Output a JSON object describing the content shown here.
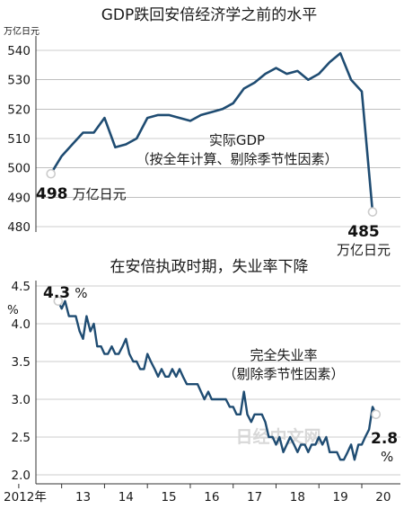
{
  "chart_data": [
    {
      "type": "line",
      "title": "GDP跌回安倍经济学之前的水平",
      "ylabel": "万亿日元",
      "ylim": [
        480,
        540
      ],
      "yticks": [
        480,
        490,
        500,
        510,
        520,
        530,
        540
      ],
      "series_label": "实际GDP",
      "series_note": "（按全年计算、剔除季节性因素）",
      "annotations": {
        "start_value": "498",
        "start_unit": "万亿日元",
        "end_value": "485",
        "end_unit": "万亿日元"
      },
      "colors": {
        "line": "#1f4c72",
        "marker": "#cccccc"
      },
      "x": [
        2012.75,
        2013.0,
        2013.25,
        2013.5,
        2013.75,
        2014.0,
        2014.25,
        2014.5,
        2014.75,
        2015.0,
        2015.25,
        2015.5,
        2015.75,
        2016.0,
        2016.25,
        2016.5,
        2016.75,
        2017.0,
        2017.25,
        2017.5,
        2017.75,
        2018.0,
        2018.25,
        2018.5,
        2018.75,
        2019.0,
        2019.25,
        2019.5,
        2019.75,
        2020.0,
        2020.25
      ],
      "values": [
        498,
        504,
        508,
        512,
        512,
        517,
        507,
        508,
        510,
        517,
        518,
        518,
        517,
        516,
        518,
        519,
        520,
        522,
        527,
        529,
        532,
        534,
        532,
        533,
        530,
        532,
        536,
        539,
        530,
        526,
        485
      ]
    },
    {
      "type": "line",
      "title": "在安倍执政时期，失业率下降",
      "ylabel": "%",
      "ylim": [
        2.0,
        4.5
      ],
      "yticks": [
        2.0,
        2.5,
        3.0,
        3.5,
        4.0,
        4.5
      ],
      "xticks": [
        "2012年",
        "13",
        "14",
        "15",
        "16",
        "17",
        "18",
        "19",
        "20"
      ],
      "xtick_years": [
        2012,
        2013,
        2014,
        2015,
        2016,
        2017,
        2018,
        2019,
        2020
      ],
      "xlim": [
        2012.4,
        2020.9
      ],
      "series_label": "完全失业率",
      "series_note": "（剔除季节性因素）",
      "annotations": {
        "start_value": "4.3",
        "start_unit": "%",
        "end_value": "2.8",
        "end_unit": "%"
      },
      "watermark": "日经中文网",
      "colors": {
        "line": "#1f4c72",
        "marker": "#cccccc"
      },
      "x": [
        2012.92,
        2013.0,
        2013.08,
        2013.17,
        2013.25,
        2013.33,
        2013.42,
        2013.5,
        2013.58,
        2013.67,
        2013.75,
        2013.83,
        2013.92,
        2014.0,
        2014.08,
        2014.17,
        2014.25,
        2014.33,
        2014.42,
        2014.5,
        2014.58,
        2014.67,
        2014.75,
        2014.83,
        2014.92,
        2015.0,
        2015.08,
        2015.17,
        2015.25,
        2015.33,
        2015.42,
        2015.5,
        2015.58,
        2015.67,
        2015.75,
        2015.83,
        2015.92,
        2016.0,
        2016.08,
        2016.17,
        2016.25,
        2016.33,
        2016.42,
        2016.5,
        2016.58,
        2016.67,
        2016.75,
        2016.83,
        2016.92,
        2017.0,
        2017.08,
        2017.17,
        2017.25,
        2017.33,
        2017.42,
        2017.5,
        2017.58,
        2017.67,
        2017.75,
        2017.83,
        2017.92,
        2018.0,
        2018.08,
        2018.17,
        2018.25,
        2018.33,
        2018.42,
        2018.5,
        2018.58,
        2018.67,
        2018.75,
        2018.83,
        2018.92,
        2019.0,
        2019.08,
        2019.17,
        2019.25,
        2019.33,
        2019.42,
        2019.5,
        2019.58,
        2019.67,
        2019.75,
        2019.83,
        2019.92,
        2020.0,
        2020.08,
        2020.17,
        2020.25,
        2020.33
      ],
      "values": [
        4.3,
        4.2,
        4.3,
        4.1,
        4.1,
        4.1,
        3.9,
        3.8,
        4.1,
        3.9,
        4.0,
        3.7,
        3.7,
        3.6,
        3.6,
        3.7,
        3.6,
        3.6,
        3.7,
        3.8,
        3.6,
        3.5,
        3.5,
        3.4,
        3.4,
        3.6,
        3.5,
        3.4,
        3.3,
        3.4,
        3.3,
        3.3,
        3.4,
        3.3,
        3.4,
        3.3,
        3.2,
        3.2,
        3.2,
        3.2,
        3.1,
        3.0,
        3.1,
        3.0,
        3.0,
        3.0,
        3.0,
        3.0,
        2.9,
        2.9,
        2.8,
        2.8,
        3.1,
        2.8,
        2.7,
        2.8,
        2.8,
        2.8,
        2.7,
        2.5,
        2.5,
        2.4,
        2.5,
        2.3,
        2.4,
        2.5,
        2.4,
        2.3,
        2.4,
        2.4,
        2.3,
        2.4,
        2.4,
        2.5,
        2.4,
        2.5,
        2.3,
        2.3,
        2.3,
        2.2,
        2.2,
        2.3,
        2.4,
        2.2,
        2.4,
        2.4,
        2.5,
        2.6,
        2.9,
        2.8
      ]
    }
  ]
}
